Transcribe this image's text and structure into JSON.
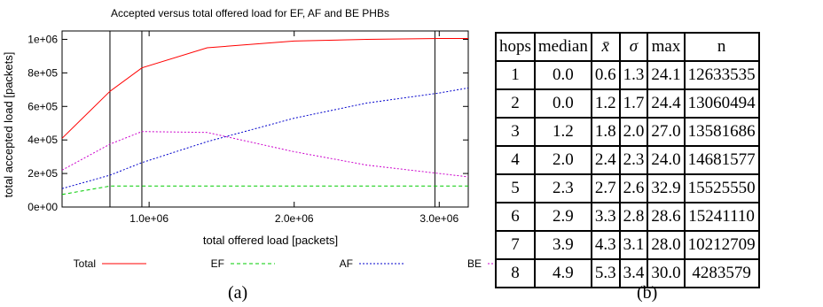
{
  "chart_data": {
    "type": "line",
    "title": "Accepted versus total offered load for EF, AF and BE PHBs",
    "xlabel": "total offered load [packets]",
    "ylabel": "total accepted load [packets]",
    "xlim": [
      400000,
      3200000
    ],
    "ylim": [
      0,
      1050000
    ],
    "xticks": [
      1000000,
      2000000,
      3000000
    ],
    "xtick_labels": [
      "1.0e+06",
      "2.0e+06",
      "3.0e+06"
    ],
    "yticks": [
      0,
      200000,
      400000,
      600000,
      800000,
      1000000
    ],
    "ytick_labels": [
      "0e+00",
      "2e+05",
      "4e+05",
      "6e+05",
      "8e+05",
      "1e+06"
    ],
    "vlines": [
      730000,
      950000,
      2970000
    ],
    "legend_position": "bottom",
    "colors": {
      "Total": "#ff0000",
      "EF": "#00cc00",
      "AF": "#0000cc",
      "BE": "#cc00cc"
    },
    "series": [
      {
        "name": "Total",
        "style": "solid",
        "x": [
          400000,
          730000,
          950000,
          1400000,
          2000000,
          2500000,
          3000000,
          3200000
        ],
        "y": [
          410000,
          690000,
          830000,
          950000,
          990000,
          1000000,
          1005000,
          1005000
        ]
      },
      {
        "name": "EF",
        "style": "dashed",
        "x": [
          400000,
          730000,
          950000,
          1400000,
          2000000,
          2500000,
          3000000,
          3200000
        ],
        "y": [
          75000,
          125000,
          125000,
          125000,
          125000,
          125000,
          125000,
          125000
        ]
      },
      {
        "name": "AF",
        "style": "dotted",
        "x": [
          400000,
          730000,
          950000,
          1400000,
          2000000,
          2500000,
          3000000,
          3200000
        ],
        "y": [
          110000,
          190000,
          265000,
          390000,
          530000,
          620000,
          680000,
          710000
        ]
      },
      {
        "name": "BE",
        "style": "dotted",
        "x": [
          400000,
          730000,
          950000,
          1400000,
          2000000,
          2500000,
          3000000,
          3200000
        ],
        "y": [
          220000,
          375000,
          450000,
          445000,
          330000,
          250000,
          200000,
          180000
        ]
      }
    ]
  },
  "captions": {
    "a": "(a)",
    "b": "(b)"
  },
  "table": {
    "headers": [
      "hops",
      "median",
      "x̄",
      "σ",
      "max",
      "n"
    ],
    "rows": [
      [
        "1",
        "0.0",
        "0.6",
        "1.3",
        "24.1",
        "12633535"
      ],
      [
        "2",
        "0.0",
        "1.2",
        "1.7",
        "24.4",
        "13060494"
      ],
      [
        "3",
        "1.2",
        "1.8",
        "2.0",
        "27.0",
        "13581686"
      ],
      [
        "4",
        "2.0",
        "2.4",
        "2.3",
        "24.0",
        "14681577"
      ],
      [
        "5",
        "2.3",
        "2.7",
        "2.6",
        "32.9",
        "15525550"
      ],
      [
        "6",
        "2.9",
        "3.3",
        "2.8",
        "28.6",
        "15241110"
      ],
      [
        "7",
        "3.9",
        "4.3",
        "3.1",
        "28.0",
        "10212709"
      ],
      [
        "8",
        "4.9",
        "5.3",
        "3.4",
        "30.0",
        "4283579"
      ]
    ]
  }
}
